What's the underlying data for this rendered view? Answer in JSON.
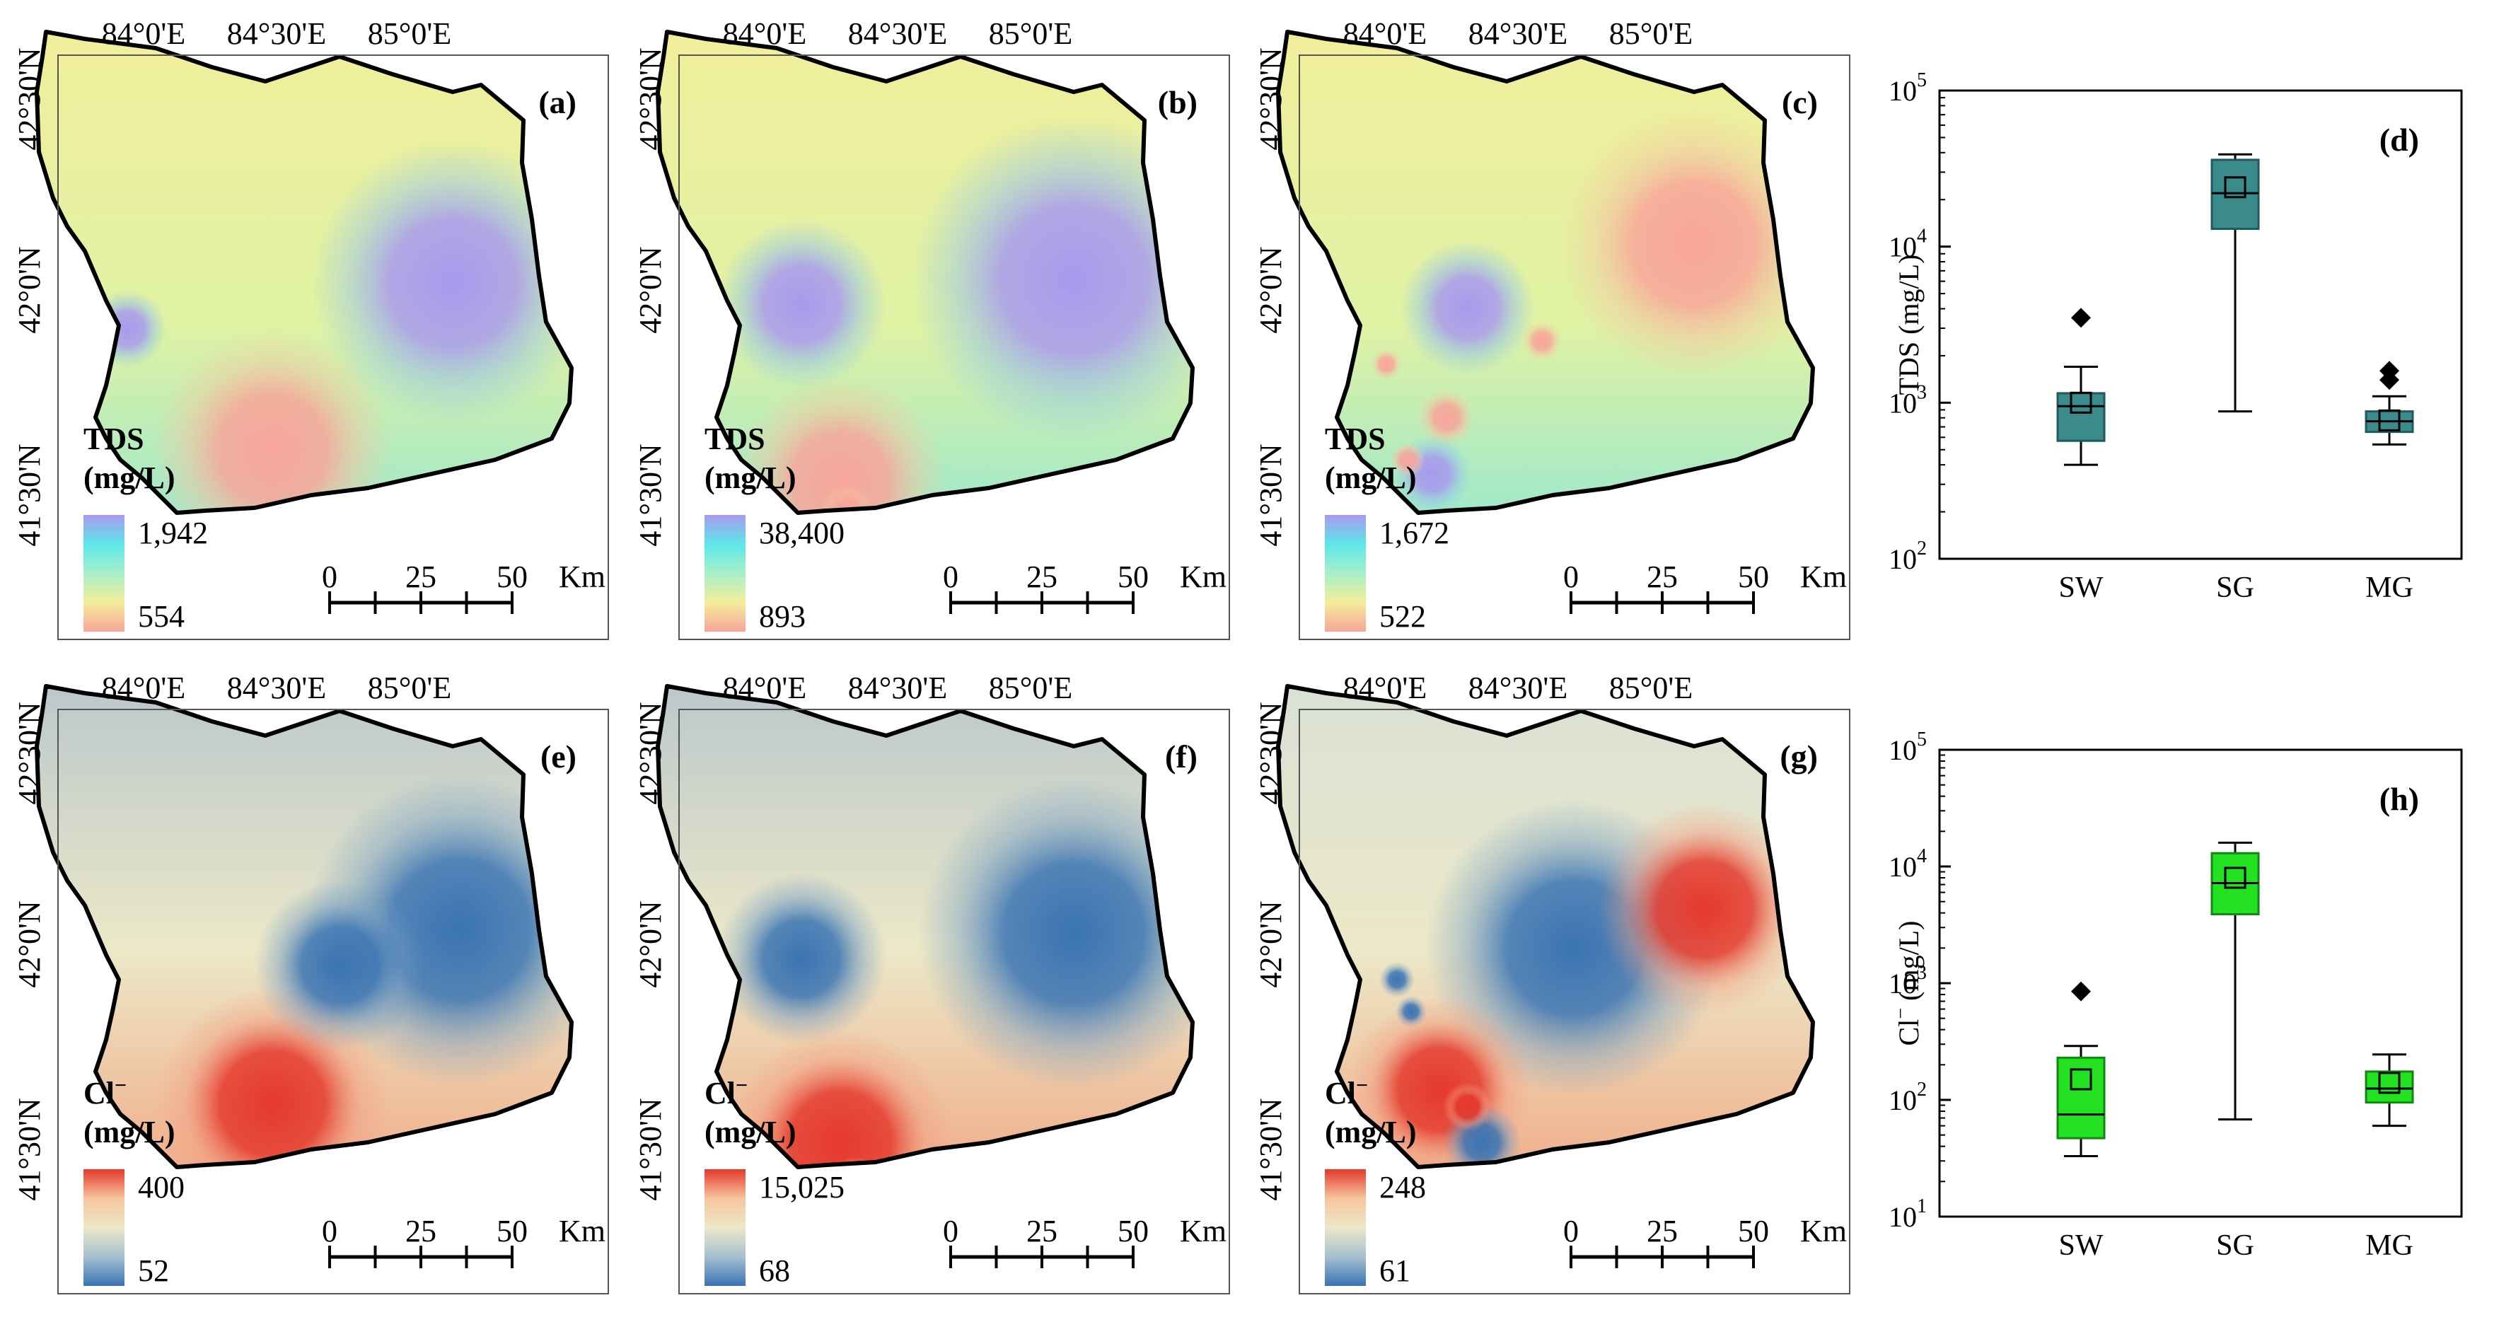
{
  "coords": {
    "lon_labels": [
      "84°0'E",
      "84°30'E",
      "85°0'E"
    ],
    "lat_labels": [
      "42°30'N",
      "42°0'N",
      "41°30'N"
    ]
  },
  "scalebar": {
    "ticks": [
      "0",
      "25",
      "50"
    ],
    "unit": "Km"
  },
  "colors": {
    "tds_low": "#f8a59a",
    "tds_mid1": "#f3ee9a",
    "tds_mid2": "#a7f0c8",
    "tds_mid3": "#5de6e9",
    "tds_high": "#a89aee",
    "cl_low": "#3a74b3",
    "cl_mid": "#ece8c8",
    "cl_high": "#e5392c",
    "box_tds": "#3b8a8c",
    "box_cl": "#22e222"
  },
  "maps": [
    {
      "panel": "(a)",
      "variable": "TDS",
      "unit": "(mg/L)",
      "legend_max": "1,942",
      "legend_min": "554"
    },
    {
      "panel": "(b)",
      "variable": "TDS",
      "unit": "(mg/L)",
      "legend_max": "38,400",
      "legend_min": "893"
    },
    {
      "panel": "(c)",
      "variable": "TDS",
      "unit": "(mg/L)",
      "legend_max": "1,672",
      "legend_min": "522"
    },
    {
      "panel": "(e)",
      "variable": "Cl",
      "variable_sup": "−",
      "unit": "(mg/L)",
      "legend_max": "400",
      "legend_min": "52"
    },
    {
      "panel": "(f)",
      "variable": "Cl",
      "variable_sup": "−",
      "unit": "(mg/L)",
      "legend_max": "15,025",
      "legend_min": "68"
    },
    {
      "panel": "(g)",
      "variable": "Cl",
      "variable_sup": "−",
      "unit": "(mg/L)",
      "legend_max": "248",
      "legend_min": "61"
    }
  ],
  "chart_data": [
    {
      "type": "box",
      "panel": "(d)",
      "ylabel": "TDS (mg/L)",
      "yscale": "log",
      "ylim_exp": [
        2,
        5
      ],
      "ytick_base": "10",
      "ytick_exps": [
        "2",
        "3",
        "4",
        "5"
      ],
      "categories": [
        "SW",
        "SG",
        "MG"
      ],
      "boxes": [
        {
          "name": "SW",
          "whisker_low": 400,
          "q1": 570,
          "median": 950,
          "q3": 1150,
          "whisker_high": 1700,
          "mean": 1000,
          "outliers": [
            3500
          ]
        },
        {
          "name": "SG",
          "whisker_low": 880,
          "q1": 13000,
          "median": 22000,
          "q3": 36000,
          "whisker_high": 39000,
          "mean": 24000,
          "outliers": []
        },
        {
          "name": "MG",
          "whisker_low": 540,
          "q1": 650,
          "median": 760,
          "q3": 880,
          "whisker_high": 1100,
          "mean": 770,
          "outliers": [
            1400,
            1600
          ]
        }
      ]
    },
    {
      "type": "box",
      "panel": "(h)",
      "ylabel_base": "Cl",
      "ylabel_sup": "−",
      "ylabel_unit": " (mg/L)",
      "yscale": "log",
      "ylim_exp": [
        1,
        5
      ],
      "ytick_base": "10",
      "ytick_exps": [
        "1",
        "2",
        "3",
        "4",
        "5"
      ],
      "categories": [
        "SW",
        "SG",
        "MG"
      ],
      "boxes": [
        {
          "name": "SW",
          "whisker_low": 33,
          "q1": 47,
          "median": 75,
          "q3": 230,
          "whisker_high": 290,
          "mean": 150,
          "outliers": [
            850
          ]
        },
        {
          "name": "SG",
          "whisker_low": 68,
          "q1": 3900,
          "median": 7200,
          "q3": 13000,
          "whisker_high": 16000,
          "mean": 8000,
          "outliers": []
        },
        {
          "name": "MG",
          "whisker_low": 60,
          "q1": 95,
          "median": 125,
          "q3": 175,
          "whisker_high": 245,
          "mean": 140,
          "outliers": []
        }
      ]
    }
  ]
}
